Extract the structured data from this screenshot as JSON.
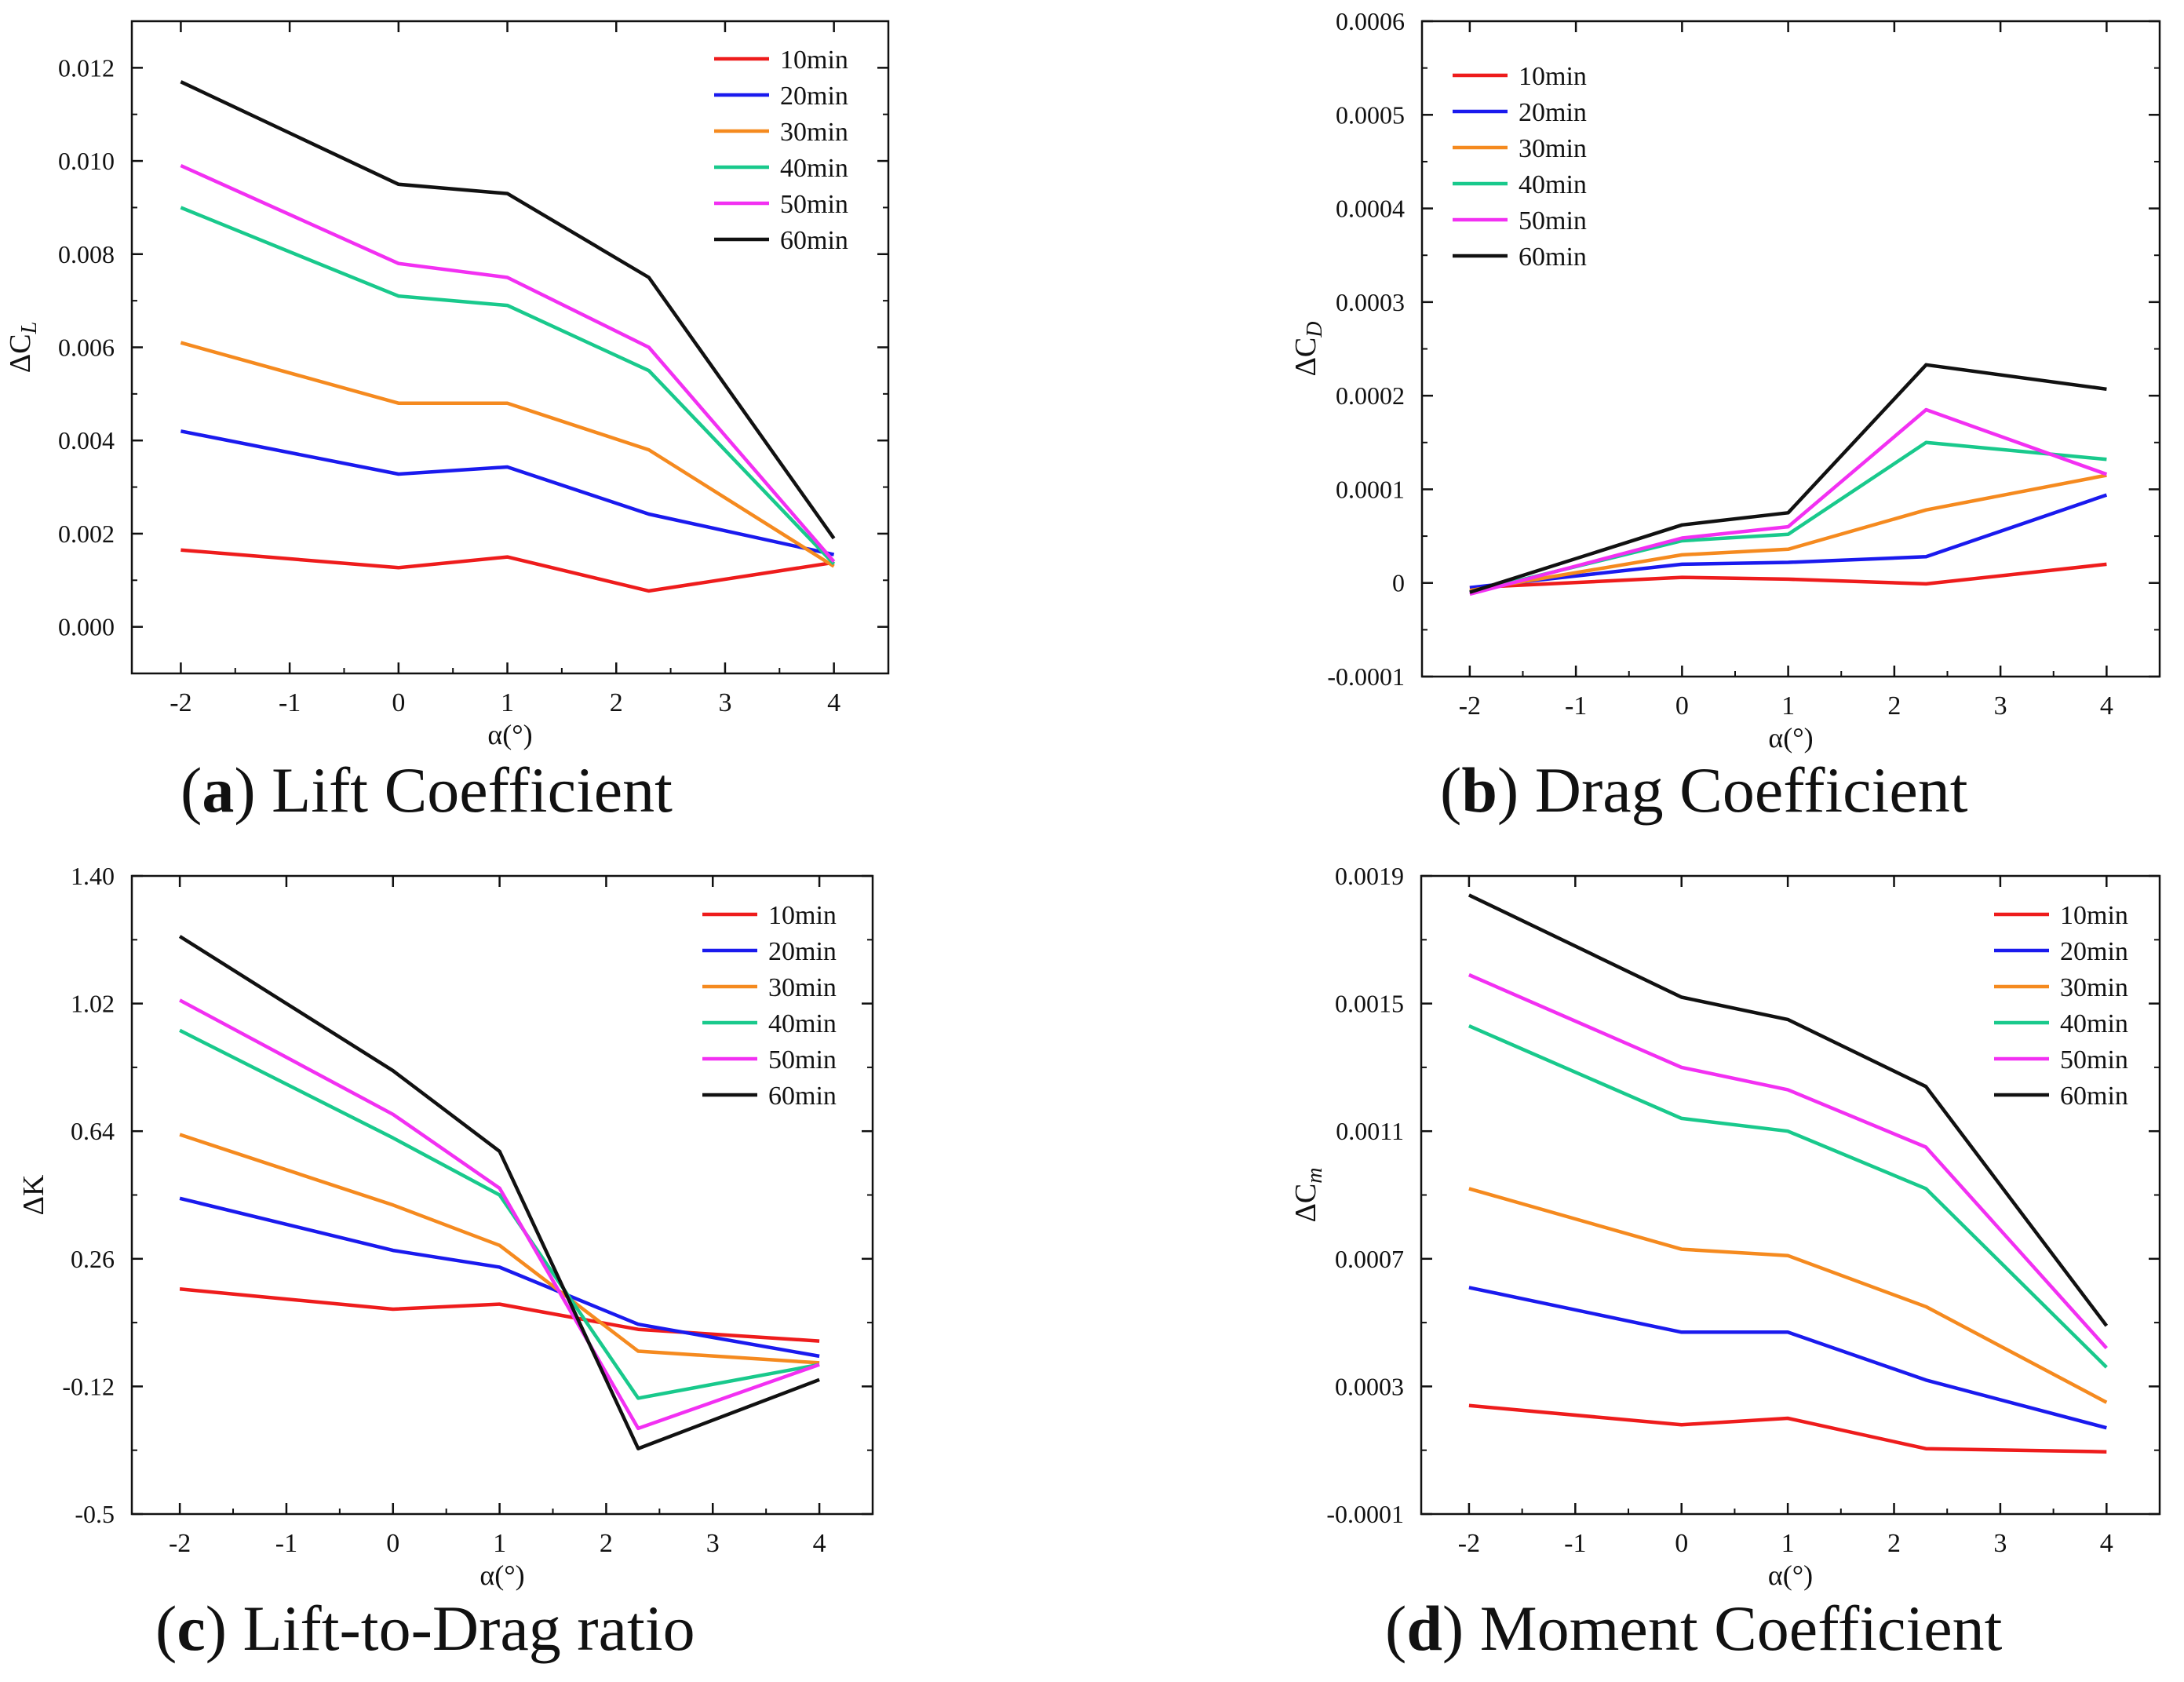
{
  "colors": {
    "10min": "#ee1c1c",
    "20min": "#1a1aee",
    "30min": "#f58a1f",
    "40min": "#19c98c",
    "50min": "#f230f2",
    "60min": "#111111"
  },
  "chart_data": [
    {
      "type": "line",
      "id": "a",
      "caption_letter": "a",
      "caption_text": "Lift Coefficient",
      "xlabel": "α(°)",
      "ylabel_main": "ΔC",
      "ylabel_sub": "L",
      "xlim": [
        -2.45,
        4.5
      ],
      "ylim": [
        -0.001,
        0.013
      ],
      "x_ticks": [
        -2,
        -1,
        0,
        1,
        2,
        3,
        4
      ],
      "x_tick_labels": [
        "-2",
        "-1",
        "0",
        "1",
        "2",
        "3",
        "4"
      ],
      "y_ticks": [
        0,
        0.002,
        0.004,
        0.006,
        0.008,
        0.01,
        0.012
      ],
      "y_tick_labels": [
        "0.000",
        "0.002",
        "0.004",
        "0.006",
        "0.008",
        "0.010",
        "0.012"
      ],
      "x": [
        -2,
        0,
        1,
        2.3,
        4
      ],
      "series": [
        {
          "name": "10min",
          "values": [
            0.00165,
            0.00127,
            0.0015,
            0.00077,
            0.00138
          ]
        },
        {
          "name": "20min",
          "values": [
            0.0042,
            0.00328,
            0.00343,
            0.00242,
            0.00155
          ]
        },
        {
          "name": "30min",
          "values": [
            0.0061,
            0.0048,
            0.0048,
            0.0038,
            0.0013
          ]
        },
        {
          "name": "40min",
          "values": [
            0.009,
            0.0071,
            0.0069,
            0.0055,
            0.00135
          ]
        },
        {
          "name": "50min",
          "values": [
            0.0099,
            0.0078,
            0.0075,
            0.006,
            0.0014
          ]
        },
        {
          "name": "60min",
          "values": [
            0.0117,
            0.0095,
            0.0093,
            0.0075,
            0.0019
          ]
        }
      ],
      "legend": "top-right"
    },
    {
      "type": "line",
      "id": "b",
      "caption_letter": "b",
      "caption_text": "Drag Coefficient",
      "xlabel": "α(°)",
      "ylabel_main": "ΔC",
      "ylabel_sub": "D",
      "xlim": [
        -2.45,
        4.5
      ],
      "ylim": [
        -0.0001,
        0.0006
      ],
      "x_ticks": [
        -2,
        -1,
        0,
        1,
        2,
        3,
        4
      ],
      "x_tick_labels": [
        "-2",
        "-1",
        "0",
        "1",
        "2",
        "3",
        "4"
      ],
      "y_ticks": [
        -0.0001,
        0,
        0.0001,
        0.0002,
        0.0003,
        0.0004,
        0.0005,
        0.0006
      ],
      "y_tick_labels": [
        "-0.0001",
        "0",
        "0.0001",
        "0.0002",
        "0.0003",
        "0.0004",
        "0.0005",
        "0.0006"
      ],
      "x": [
        -2,
        0,
        1,
        2.3,
        4
      ],
      "series": [
        {
          "name": "10min",
          "values": [
            -5e-06,
            6e-06,
            4e-06,
            -1e-06,
            2e-05
          ]
        },
        {
          "name": "20min",
          "values": [
            -5e-06,
            2e-05,
            2.2e-05,
            2.8e-05,
            9.4e-05
          ]
        },
        {
          "name": "30min",
          "values": [
            -8e-06,
            3e-05,
            3.6e-05,
            7.8e-05,
            0.000115
          ]
        },
        {
          "name": "40min",
          "values": [
            -1e-05,
            4.5e-05,
            5.2e-05,
            0.00015,
            0.000132
          ]
        },
        {
          "name": "50min",
          "values": [
            -1.2e-05,
            4.8e-05,
            6e-05,
            0.000185,
            0.000116
          ]
        },
        {
          "name": "60min",
          "values": [
            -1e-05,
            6.2e-05,
            7.5e-05,
            0.000233,
            0.000207
          ]
        }
      ],
      "legend": "top-left"
    },
    {
      "type": "line",
      "id": "c",
      "caption_letter": "c",
      "caption_text": "Lift-to-Drag ratio",
      "xlabel": "α(°)",
      "ylabel_main": "ΔK",
      "ylabel_sub": "",
      "xlim": [
        -2.45,
        4.5
      ],
      "ylim": [
        -0.5,
        1.4
      ],
      "x_ticks": [
        -2,
        -1,
        0,
        1,
        2,
        3,
        4
      ],
      "x_tick_labels": [
        "-2",
        "-1",
        "0",
        "1",
        "2",
        "3",
        "4"
      ],
      "y_ticks": [
        -0.5,
        -0.12,
        0.26,
        0.64,
        1.02,
        1.4
      ],
      "y_tick_labels": [
        "-0.5",
        "-0.12",
        "0.26",
        "0.64",
        "1.02",
        "1.40"
      ],
      "x": [
        -2,
        0,
        1,
        2.3,
        4
      ],
      "series": [
        {
          "name": "10min",
          "values": [
            0.17,
            0.11,
            0.125,
            0.05,
            0.015
          ]
        },
        {
          "name": "20min",
          "values": [
            0.44,
            0.285,
            0.235,
            0.065,
            -0.03
          ]
        },
        {
          "name": "30min",
          "values": [
            0.63,
            0.42,
            0.3,
            -0.015,
            -0.05
          ]
        },
        {
          "name": "40min",
          "values": [
            0.94,
            0.62,
            0.45,
            -0.155,
            -0.055
          ]
        },
        {
          "name": "50min",
          "values": [
            1.03,
            0.69,
            0.47,
            -0.245,
            -0.055
          ]
        },
        {
          "name": "60min",
          "values": [
            1.22,
            0.82,
            0.58,
            -0.305,
            -0.1
          ]
        }
      ],
      "legend": "top-right"
    },
    {
      "type": "line",
      "id": "d",
      "caption_letter": "d",
      "caption_text": "Moment Coefficient",
      "xlabel": "α(°)",
      "ylabel_main": "ΔC",
      "ylabel_sub": "m",
      "xlim": [
        -2.45,
        4.5
      ],
      "ylim": [
        -0.0001,
        0.0019
      ],
      "x_ticks": [
        -2,
        -1,
        0,
        1,
        2,
        3,
        4
      ],
      "x_tick_labels": [
        "-2",
        "-1",
        "0",
        "1",
        "2",
        "3",
        "4"
      ],
      "y_ticks": [
        -0.0001,
        0.0003,
        0.0007,
        0.0011,
        0.0015,
        0.0019
      ],
      "y_tick_labels": [
        "-0.0001",
        "0.0003",
        "0.0007",
        "0.0011",
        "0.0015",
        "0.0019"
      ],
      "x": [
        -2,
        0,
        1,
        2.3,
        4
      ],
      "series": [
        {
          "name": "10min",
          "values": [
            0.00024,
            0.00018,
            0.0002,
            0.000105,
            9.5e-05
          ]
        },
        {
          "name": "20min",
          "values": [
            0.00061,
            0.00047,
            0.00047,
            0.00032,
            0.00017
          ]
        },
        {
          "name": "30min",
          "values": [
            0.00092,
            0.00073,
            0.00071,
            0.00055,
            0.00025
          ]
        },
        {
          "name": "40min",
          "values": [
            0.00143,
            0.00114,
            0.0011,
            0.00092,
            0.00036
          ]
        },
        {
          "name": "50min",
          "values": [
            0.00159,
            0.0013,
            0.00123,
            0.00105,
            0.00042
          ]
        },
        {
          "name": "60min",
          "values": [
            0.00184,
            0.00152,
            0.00145,
            0.00124,
            0.00049
          ]
        }
      ],
      "legend": "top-right"
    }
  ]
}
